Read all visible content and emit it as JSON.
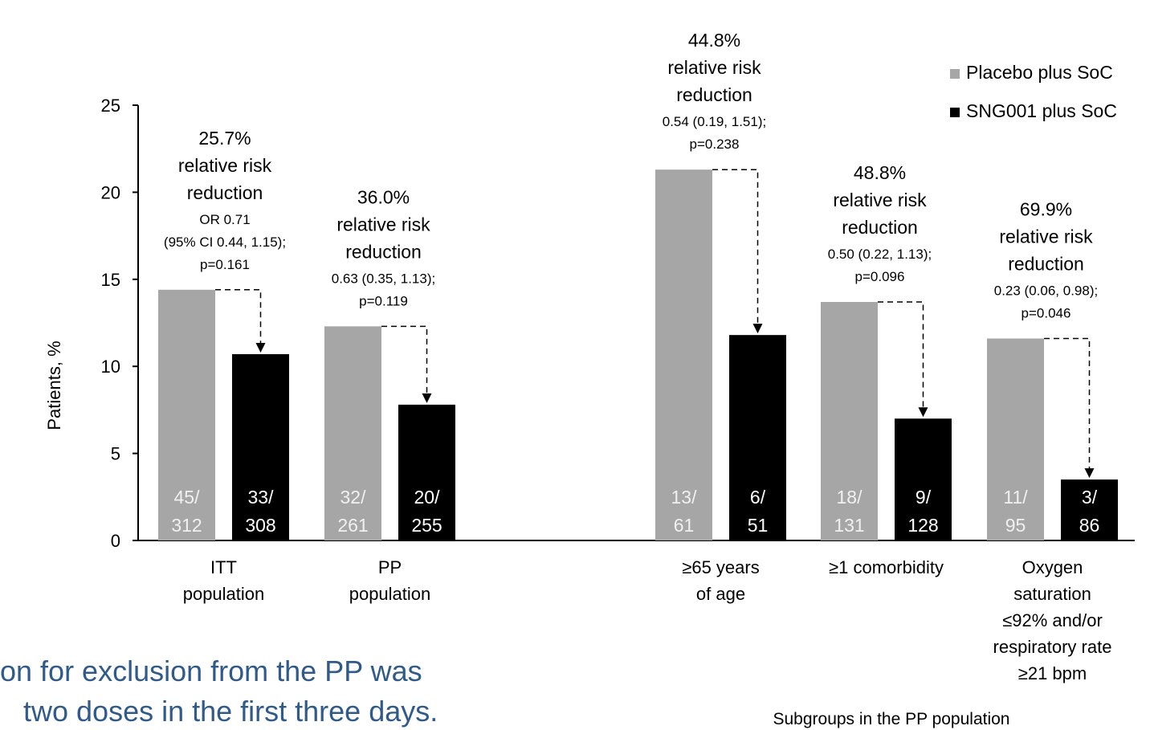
{
  "chart_data": {
    "type": "bar",
    "y_label": "Patients, %",
    "x_label": "Subgroups in the PP population",
    "categories": [
      "ITT\npopulation",
      "PP\npopulation",
      "≥65 years\nof age",
      "≥1 comorbidity",
      "Oxygen\nsaturation\n≤92% and/or\nrespiratory rate\n≥21 bpm"
    ],
    "series": [
      {
        "name": "Placebo plus SoC",
        "color": "#a6a6a6",
        "values": [
          14.4,
          12.3,
          21.3,
          13.7,
          11.6
        ],
        "bar_labels": [
          "45/\n312",
          "32/\n261",
          "13/\n61",
          "18/\n131",
          "11/\n95"
        ]
      },
      {
        "name": "SNG001 plus SoC",
        "color": "#000000",
        "values": [
          10.7,
          7.8,
          11.8,
          7.0,
          3.5
        ],
        "bar_labels": [
          "33/\n308",
          "20/\n255",
          "6/\n51",
          "9/\n128",
          "3/\n86"
        ]
      }
    ],
    "annotations": [
      {
        "headline": "25.7%\nrelative risk\nreduction",
        "detail": "OR 0.71\n(95% CI 0.44, 1.15);\np=0.161"
      },
      {
        "headline": "36.0%\nrelative risk\nreduction",
        "detail": "0.63 (0.35, 1.13);\np=0.119"
      },
      {
        "headline": "44.8%\nrelative risk\nreduction",
        "detail": "0.54 (0.19, 1.51);\np=0.238"
      },
      {
        "headline": "48.8%\nrelative risk\nreduction",
        "detail": "0.50 (0.22, 1.13);\np=0.096"
      },
      {
        "headline": "69.9%\nrelative risk\nreduction",
        "detail": "0.23 (0.06, 0.98);\np=0.046"
      }
    ],
    "ylim": [
      0,
      25
    ],
    "yticks": [
      0,
      5,
      10,
      15,
      20,
      25
    ],
    "legend": "top-right"
  },
  "footnote": [
    "on for exclusion from the PP was",
    "two doses in the first three days."
  ]
}
